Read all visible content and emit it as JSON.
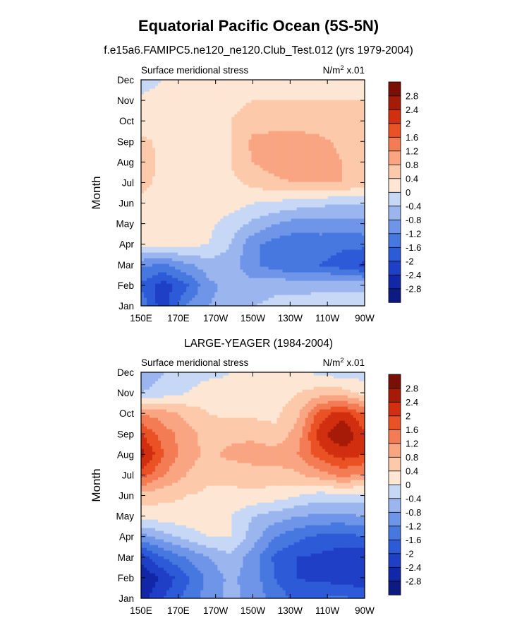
{
  "figure": {
    "title": "Equatorial Pacific Ocean (5S-5N)",
    "subtitle": "f.e15a6.FAMIPC5.ne120_ne120.Club_Test.012 (yrs 1979-2004)"
  },
  "chart_data": [
    {
      "type": "heatmap",
      "title": "f.e15a6.FAMIPC5.ne120_ne120.Club_Test.012 (yrs 1979-2004)",
      "left_string": "Surface meridional stress",
      "right_string": "N/m",
      "right_sup": "2",
      "right_suffix": " x.01",
      "xlabel": "",
      "ylabel": "Month",
      "x_ticks": [
        "150E",
        "170E",
        "170W",
        "150W",
        "130W",
        "110W",
        "90W"
      ],
      "y_ticks": [
        "Jan",
        "Feb",
        "Mar",
        "Apr",
        "May",
        "Jun",
        "Jul",
        "Aug",
        "Sep",
        "Oct",
        "Nov",
        "Dec"
      ],
      "rows_from_jan": [
        [
          -1.3,
          -2.3,
          -1.2,
          -0.8,
          -0.6,
          -0.4,
          -0.3,
          -0.3,
          -0.2,
          -0.2,
          -0.2
        ],
        [
          -1.7,
          -2.2,
          -1.7,
          -0.9,
          -0.7,
          -0.6,
          -0.5,
          -0.5,
          -0.5,
          -0.5,
          -0.5
        ],
        [
          -1.1,
          -1.3,
          -0.9,
          -0.6,
          -0.6,
          -1.1,
          -1.4,
          -1.6,
          -1.6,
          -1.8,
          -2.1
        ],
        [
          0.1,
          0.2,
          0.1,
          0.0,
          -0.4,
          -1.1,
          -1.4,
          -1.5,
          -1.4,
          -1.5,
          -1.5
        ],
        [
          0.2,
          0.2,
          0.2,
          0.1,
          -0.2,
          -0.5,
          -0.8,
          -1.0,
          -1.0,
          -1.0,
          -0.9
        ],
        [
          0.3,
          0.3,
          0.2,
          0.2,
          0.2,
          0.0,
          -0.1,
          -0.2,
          -0.3,
          -0.4,
          -0.4
        ],
        [
          0.5,
          0.3,
          0.2,
          0.3,
          0.3,
          0.5,
          0.7,
          0.8,
          0.8,
          0.8,
          0.6
        ],
        [
          0.6,
          0.3,
          0.3,
          0.3,
          0.4,
          0.8,
          1.0,
          1.2,
          1.0,
          0.8,
          0.6
        ],
        [
          0.5,
          0.3,
          0.3,
          0.3,
          0.4,
          0.9,
          1.0,
          1.0,
          0.9,
          0.7,
          0.5
        ],
        [
          0.2,
          0.2,
          0.2,
          0.3,
          0.4,
          0.6,
          0.6,
          0.6,
          0.6,
          0.5,
          0.5
        ],
        [
          0.1,
          0.2,
          0.2,
          0.3,
          0.3,
          0.4,
          0.4,
          0.4,
          0.4,
          0.4,
          0.4
        ],
        [
          -0.2,
          0.0,
          0.2,
          0.2,
          0.3,
          0.3,
          0.3,
          0.3,
          0.3,
          0.3,
          0.3
        ]
      ],
      "contour_levels": [
        -2.8,
        -2.4,
        -2,
        -1.6,
        -1.2,
        -0.8,
        -0.4,
        0,
        0.4,
        0.8,
        1.2,
        1.6,
        2,
        2.4,
        2.8
      ],
      "colorbar_labels": [
        "-2.8",
        "-2.4",
        "-2",
        "-1.6",
        "-1.2",
        "-0.8",
        "-0.4",
        "0",
        "0.4",
        "0.8",
        "1.2",
        "1.6",
        "2",
        "2.4",
        "2.8"
      ],
      "colors": [
        "#0d1a80",
        "#1226a8",
        "#1f3fc6",
        "#2d5bd8",
        "#4678e0",
        "#6f95e8",
        "#9bb6ef",
        "#c6d8f5",
        "#fde6d3",
        "#fcc9aa",
        "#f9a582",
        "#f47c54",
        "#ea5226",
        "#d12f10",
        "#a61a08",
        "#7a0f05"
      ]
    },
    {
      "type": "heatmap",
      "title": "LARGE-YEAGER (1984-2004)",
      "left_string": "Surface meridional stress",
      "right_string": "N/m",
      "right_sup": "2",
      "right_suffix": " x.01",
      "xlabel": "",
      "ylabel": "Month",
      "x_ticks": [
        "150E",
        "170E",
        "170W",
        "150W",
        "130W",
        "110W",
        "90W"
      ],
      "y_ticks": [
        "Jan",
        "Feb",
        "Mar",
        "Apr",
        "May",
        "Jun",
        "Jul",
        "Aug",
        "Sep",
        "Oct",
        "Nov",
        "Dec"
      ],
      "rows_from_jan": [
        [
          -2.6,
          -2.0,
          -1.5,
          -1.0,
          -0.7,
          -0.9,
          -1.4,
          -1.7,
          -1.6,
          -1.5,
          -1.7
        ],
        [
          -2.8,
          -2.3,
          -1.7,
          -1.1,
          -0.7,
          -1.0,
          -1.6,
          -2.0,
          -2.1,
          -2.2,
          -2.3
        ],
        [
          -2.2,
          -1.6,
          -1.2,
          -0.8,
          -0.5,
          -1.0,
          -1.7,
          -2.0,
          -2.1,
          -2.2,
          -2.3
        ],
        [
          -1.0,
          -0.6,
          -0.3,
          0.0,
          0.0,
          -0.6,
          -1.2,
          -1.5,
          -1.7,
          -1.8,
          -1.6
        ],
        [
          0.2,
          0.2,
          0.3,
          0.3,
          0.0,
          -0.4,
          -0.6,
          -0.8,
          -0.9,
          -0.9,
          -0.8
        ],
        [
          0.6,
          0.5,
          0.4,
          0.3,
          0.3,
          0.3,
          0.2,
          0.0,
          -0.2,
          -0.2,
          -0.2
        ],
        [
          1.8,
          1.2,
          0.8,
          0.5,
          0.5,
          0.6,
          0.6,
          0.7,
          1.0,
          1.3,
          1.1
        ],
        [
          2.6,
          1.6,
          1.0,
          0.7,
          0.9,
          1.0,
          1.0,
          1.2,
          1.8,
          2.2,
          2.0
        ],
        [
          2.0,
          1.4,
          1.0,
          0.6,
          0.7,
          0.7,
          0.5,
          1.0,
          2.2,
          2.8,
          2.1
        ],
        [
          1.2,
          1.0,
          0.7,
          0.4,
          0.3,
          0.3,
          0.3,
          0.7,
          1.8,
          2.2,
          1.6
        ],
        [
          -0.4,
          -0.2,
          0.0,
          0.2,
          0.1,
          0.1,
          0.2,
          0.4,
          0.6,
          0.6,
          0.3
        ],
        [
          -0.7,
          -0.4,
          -0.2,
          -0.1,
          0.0,
          0.2,
          0.2,
          0.1,
          -0.1,
          -0.2,
          -0.2
        ]
      ],
      "contour_levels": [
        -2.8,
        -2.4,
        -2,
        -1.6,
        -1.2,
        -0.8,
        -0.4,
        0,
        0.4,
        0.8,
        1.2,
        1.6,
        2,
        2.4,
        2.8
      ],
      "colorbar_labels": [
        "-2.8",
        "-2.4",
        "-2",
        "-1.6",
        "-1.2",
        "-0.8",
        "-0.4",
        "0",
        "0.4",
        "0.8",
        "1.2",
        "1.6",
        "2",
        "2.4",
        "2.8"
      ],
      "colors": [
        "#0d1a80",
        "#1226a8",
        "#1f3fc6",
        "#2d5bd8",
        "#4678e0",
        "#6f95e8",
        "#9bb6ef",
        "#c6d8f5",
        "#fde6d3",
        "#fcc9aa",
        "#f9a582",
        "#f47c54",
        "#ea5226",
        "#d12f10",
        "#a61a08",
        "#7a0f05"
      ]
    }
  ]
}
